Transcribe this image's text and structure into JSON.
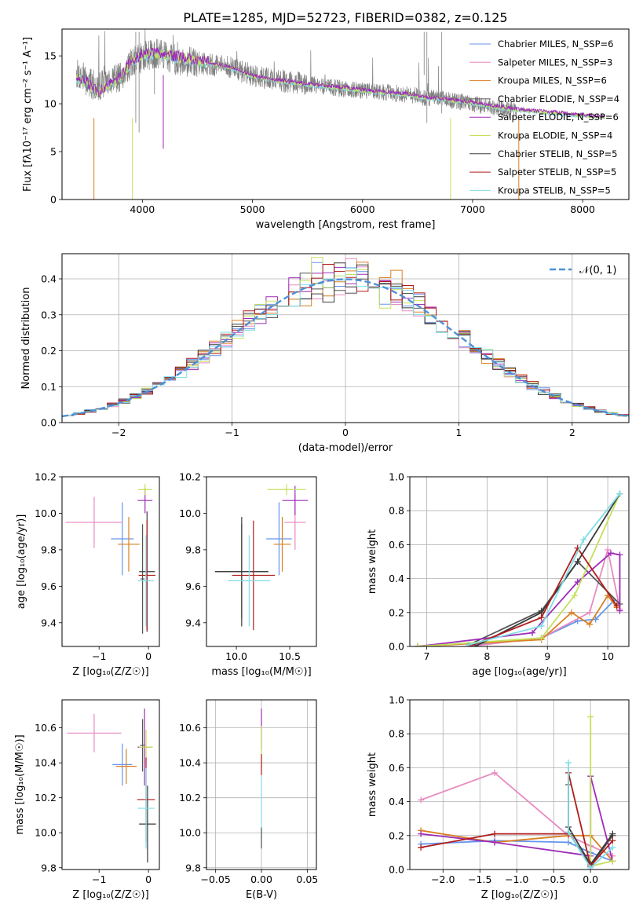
{
  "title": "PLATE=1285, MJD=52723, FIBERID=0382, z=0.125",
  "colors": {
    "c1": "#6495ed",
    "c2": "#e88ac0",
    "c3": "#d98024",
    "c4": "#555555",
    "c5": "#9d2cb8",
    "c6": "#c5e05c",
    "c7": "#3a3a3a",
    "c8": "#b01c1c",
    "c9": "#7fdde8",
    "grid": "#b0b0b0",
    "normal": "#4f8fd6"
  },
  "chart_data": [
    {
      "id": "spectrum",
      "type": "line",
      "xlabel": "wavelength [Angstrom, rest frame]",
      "ylabel": "Flux [fλ10⁻¹⁷ erg cm⁻² s⁻¹ A⁻¹]",
      "xlim": [
        3270,
        8420
      ],
      "ylim": [
        0,
        17.8
      ],
      "xticks": [
        4000,
        5000,
        6000,
        7000,
        8000
      ],
      "yticks": [
        0,
        5,
        10,
        15
      ],
      "grid": false,
      "legend": "top-right",
      "legend_entries": [
        "Chabrier MILES, N_SSP=6",
        "Salpeter MILES, N_SSP=3",
        "Kroupa MILES, N_SSP=6",
        "Chabrier ELODIE, N_SSP=4",
        "Salpeter ELODIE, N_SSP=6",
        "Kroupa ELODIE, N_SSP=4",
        "Chabrier STELIB, N_SSP=5",
        "Salpeter STELIB, N_SSP=5",
        "Kroupa STELIB, N_SSP=5"
      ],
      "data_curve": {
        "x": [
          3400,
          3500,
          3600,
          3700,
          3800,
          3900,
          4000,
          4100,
          4200,
          4300,
          4400,
          4500,
          4600,
          4800,
          5000,
          5200,
          5400,
          5600,
          5800,
          6000,
          6200,
          6400,
          6600,
          6800,
          7000,
          7200,
          7400
        ],
        "y": [
          13.2,
          12.2,
          11.8,
          12.4,
          12.8,
          14.2,
          14.9,
          15.2,
          15.1,
          14.6,
          14.4,
          14.3,
          14.1,
          13.8,
          13.0,
          12.5,
          12.2,
          11.9,
          11.6,
          11.4,
          11.2,
          11.0,
          10.6,
          10.4,
          10.0,
          9.6,
          9.2
        ]
      },
      "model_curve": {
        "x": [
          3400,
          3500,
          3600,
          3700,
          3800,
          3900,
          4000,
          4100,
          4200,
          4400,
          4600,
          4800,
          5000,
          5200,
          5400,
          5600,
          5800,
          6000,
          6200,
          6400,
          6600,
          6800,
          7000,
          7200,
          7400,
          7600,
          7800,
          8000,
          8200
        ],
        "y": [
          12.8,
          12.0,
          11.0,
          12.0,
          12.6,
          14.4,
          15.0,
          15.2,
          15.0,
          14.6,
          14.2,
          13.7,
          12.8,
          12.4,
          12.1,
          11.8,
          11.6,
          11.3,
          11.1,
          10.9,
          10.5,
          10.3,
          10.0,
          9.6,
          9.3,
          9.1,
          8.9,
          8.7,
          8.5
        ]
      }
    },
    {
      "id": "residuals",
      "type": "histogram",
      "xlabel": "(data-model)/error",
      "ylabel": "Normed distribution",
      "xlim": [
        -2.5,
        2.5
      ],
      "ylim": [
        0,
        0.47
      ],
      "xticks": [
        -2,
        -1,
        0,
        1,
        2
      ],
      "yticks": [
        0,
        0.1,
        0.2,
        0.3,
        0.4
      ],
      "grid": true,
      "legend": "top-right",
      "legend_entries": [
        "𝒩(0, 1)"
      ],
      "bin_width": 0.1
    },
    {
      "id": "age_vs_Z",
      "type": "errorbar",
      "xlabel": "Z [log₁₀(Z/Z☉)]",
      "ylabel": "age  [log₁₀(age/yr)]",
      "xlim": [
        -1.75,
        0.22
      ],
      "ylim": [
        9.27,
        10.2
      ],
      "xticks": [
        -1,
        0
      ],
      "yticks": [
        9.4,
        9.6,
        9.8,
        10.0,
        10.2
      ],
      "points": [
        {
          "c": "c1",
          "x": -0.53,
          "xe": 0.23,
          "y": 9.86,
          "ye": 0.2
        },
        {
          "c": "c2",
          "x": -1.1,
          "xe": 0.58,
          "y": 9.95,
          "ye": 0.14
        },
        {
          "c": "c3",
          "x": -0.4,
          "xe": 0.22,
          "y": 9.83,
          "ye": 0.15
        },
        {
          "c": "c4",
          "x": -0.12,
          "xe": 0.04,
          "y": 9.64,
          "ye": 0.3
        },
        {
          "c": "c5",
          "x": -0.07,
          "xe": 0.15,
          "y": 10.07,
          "ye": 0.07
        },
        {
          "c": "c6",
          "x": -0.07,
          "xe": 0.14,
          "y": 10.13,
          "ye": 0.03
        },
        {
          "c": "c7",
          "x": -0.03,
          "xe": 0.16,
          "y": 9.68,
          "ye": 0.33
        },
        {
          "c": "c8",
          "x": -0.03,
          "xe": 0.17,
          "y": 9.66,
          "ye": 0.3
        },
        {
          "c": "c9",
          "x": -0.05,
          "xe": 0.16,
          "y": 9.63,
          "ye": 0.25
        }
      ]
    },
    {
      "id": "age_vs_mass",
      "type": "errorbar",
      "xlabel": "mass [log₁₀(M/M☉)]",
      "ylabel": "",
      "xlim": [
        9.72,
        10.75
      ],
      "ylim": [
        9.27,
        10.2
      ],
      "xticks": [
        10.0,
        10.5
      ],
      "yticks": [
        9.4,
        9.6,
        9.8,
        10.0,
        10.2
      ],
      "points": [
        {
          "c": "c1",
          "x": 10.4,
          "xe": 0.12,
          "y": 9.86,
          "ye": 0.2
        },
        {
          "c": "c2",
          "x": 10.55,
          "xe": 0.1,
          "y": 9.95,
          "ye": 0.15
        },
        {
          "c": "c3",
          "x": 10.43,
          "xe": 0.08,
          "y": 9.83,
          "ye": 0.15
        },
        {
          "c": "c4",
          "x": 10.05,
          "xe": 0.25,
          "y": 9.68,
          "ye": 0.26
        },
        {
          "c": "c5",
          "x": 10.55,
          "xe": 0.12,
          "y": 10.07,
          "ye": 0.08
        },
        {
          "c": "c6",
          "x": 10.47,
          "xe": 0.18,
          "y": 10.13,
          "ye": 0.03
        },
        {
          "c": "c7",
          "x": 10.05,
          "xe": 0.25,
          "y": 9.68,
          "ye": 0.3
        },
        {
          "c": "c8",
          "x": 10.16,
          "xe": 0.2,
          "y": 9.66,
          "ye": 0.3
        },
        {
          "c": "c9",
          "x": 10.12,
          "xe": 0.2,
          "y": 9.63,
          "ye": 0.25
        }
      ]
    },
    {
      "id": "weight_vs_age",
      "type": "line",
      "xlabel": "age  [log₁₀(age/yr)]",
      "ylabel": "mass weight",
      "xlim": [
        6.72,
        10.35
      ],
      "ylim": [
        0,
        1.0
      ],
      "xticks": [
        7,
        8,
        9,
        10
      ],
      "yticks": [
        0,
        0.2,
        0.4,
        0.6,
        0.8,
        1.0
      ],
      "grid": true,
      "series": [
        {
          "c": "c1",
          "x": [
            7.8,
            8.9,
            9.5,
            9.8,
            10.1
          ],
          "y": [
            0.01,
            0.05,
            0.15,
            0.16,
            0.27
          ]
        },
        {
          "c": "c2",
          "x": [
            7.7,
            8.9,
            9.7,
            10.0,
            10.2
          ],
          "y": [
            0.0,
            0.05,
            0.2,
            0.57,
            0.22
          ]
        },
        {
          "c": "c3",
          "x": [
            6.85,
            8.9,
            9.4,
            9.7,
            10.0,
            10.15
          ],
          "y": [
            0.0,
            0.04,
            0.2,
            0.13,
            0.3,
            0.23
          ]
        },
        {
          "c": "c4",
          "x": [
            7.7,
            8.9,
            9.5,
            10.2
          ],
          "y": [
            0.01,
            0.21,
            0.5,
            0.25
          ]
        },
        {
          "c": "c5",
          "x": [
            6.85,
            8.75,
            9.5,
            10.05,
            10.2,
            10.2
          ],
          "y": [
            0.0,
            0.08,
            0.38,
            0.55,
            0.54,
            0.21
          ]
        },
        {
          "c": "c6",
          "x": [
            6.85,
            8.9,
            9.45,
            10.2
          ],
          "y": [
            0.0,
            0.05,
            0.3,
            0.9
          ]
        },
        {
          "c": "c7",
          "x": [
            7.8,
            8.9,
            9.5,
            10.2
          ],
          "y": [
            0.0,
            0.2,
            0.5,
            0.9
          ]
        },
        {
          "c": "c8",
          "x": [
            7.7,
            8.9,
            9.5,
            10.15
          ],
          "y": [
            0.0,
            0.17,
            0.58,
            0.24
          ]
        },
        {
          "c": "c9",
          "x": [
            7.7,
            8.9,
            9.6,
            10.2
          ],
          "y": [
            0.01,
            0.12,
            0.63,
            0.9
          ]
        }
      ]
    },
    {
      "id": "mass_vs_Z",
      "type": "errorbar",
      "xlabel": "Z [log₁₀(Z/Z☉)]",
      "ylabel": "mass [log₁₀(M/M☉)]",
      "xlim": [
        -1.75,
        0.22
      ],
      "ylim": [
        9.79,
        10.76
      ],
      "xticks": [
        -1,
        0
      ],
      "yticks": [
        9.8,
        10.0,
        10.2,
        10.4,
        10.6
      ],
      "points": [
        {
          "c": "c1",
          "x": -0.53,
          "xe": 0.2,
          "y": 10.39,
          "ye": 0.12
        },
        {
          "c": "c2",
          "x": -1.1,
          "xe": 0.55,
          "y": 10.57,
          "ye": 0.11
        },
        {
          "c": "c3",
          "x": -0.45,
          "xe": 0.21,
          "y": 10.38,
          "ye": 0.1
        },
        {
          "c": "c4",
          "x": -0.12,
          "xe": 0.05,
          "y": 10.5,
          "ye": 0.15
        },
        {
          "c": "c5",
          "x": -0.08,
          "xe": 0.14,
          "y": 10.49,
          "ye": 0.22
        },
        {
          "c": "c6",
          "x": -0.05,
          "xe": 0.14,
          "y": 10.49,
          "ye": 0.1
        },
        {
          "c": "c7",
          "x": -0.02,
          "xe": 0.17,
          "y": 10.05,
          "ye": 0.22
        },
        {
          "c": "c8",
          "x": -0.05,
          "xe": 0.18,
          "y": 10.19,
          "ye": 0.24
        },
        {
          "c": "c9",
          "x": -0.05,
          "xe": 0.17,
          "y": 10.14,
          "ye": 0.23
        }
      ]
    },
    {
      "id": "mass_vs_EBV",
      "type": "errorbar",
      "xlabel": "E(B-V)",
      "ylabel": "",
      "xlim": [
        -0.06,
        0.06
      ],
      "ylim": [
        9.79,
        10.76
      ],
      "xticks": [
        -0.05,
        0.0,
        0.05
      ],
      "yticks": [
        9.8,
        10.0,
        10.2,
        10.4,
        10.6
      ],
      "grid": true,
      "points": [
        {
          "c": "c5",
          "x": 0,
          "xe": 0,
          "y": 10.59,
          "ye": 0.12
        },
        {
          "c": "c6",
          "x": 0,
          "xe": 0,
          "y": 10.49,
          "ye": 0.12
        },
        {
          "c": "c8",
          "x": 0,
          "xe": 0,
          "y": 10.39,
          "ye": 0.06
        },
        {
          "c": "c9",
          "x": 0,
          "xe": 0,
          "y": 10.12,
          "ye": 0.2
        },
        {
          "c": "c4",
          "x": 0,
          "xe": 0,
          "y": 9.97,
          "ye": 0.06
        }
      ]
    },
    {
      "id": "weight_vs_Z",
      "type": "line",
      "xlabel": "Z [log₁₀(Z/Z☉)]",
      "ylabel": "mass weight",
      "xlim": [
        -2.45,
        0.52
      ],
      "ylim": [
        0,
        1.0
      ],
      "xticks": [
        -2.0,
        -1.5,
        -1.0,
        -0.5,
        0.0
      ],
      "yticks": [
        0,
        0.2,
        0.4,
        0.6,
        0.8,
        1.0
      ],
      "grid": true,
      "series": [
        {
          "c": "c1",
          "x": [
            -2.3,
            -1.3,
            -0.3,
            0.0,
            0.3
          ],
          "y": [
            0.15,
            0.17,
            0.16,
            0.1,
            0.05
          ]
        },
        {
          "c": "c2",
          "x": [
            -2.3,
            -1.3,
            -0.3,
            0.0,
            0.3
          ],
          "y": [
            0.41,
            0.57,
            0.2,
            0.14,
            0.08
          ]
        },
        {
          "c": "c3",
          "x": [
            -2.3,
            -1.3,
            -0.3,
            0.0,
            0.3
          ],
          "y": [
            0.23,
            0.16,
            0.2,
            0.2,
            0.05
          ]
        },
        {
          "c": "c4",
          "x": [
            -0.3,
            -0.3,
            0.0,
            0.3
          ],
          "y": [
            0.5,
            0.22,
            0.02,
            0.2
          ]
        },
        {
          "c": "c5",
          "x": [
            -2.3,
            -1.3,
            0.0,
            0.0,
            0.3
          ],
          "y": [
            0.21,
            0.16,
            0.08,
            0.55,
            0.05
          ]
        },
        {
          "c": "c6",
          "x": [
            0.0,
            0.0,
            0.3
          ],
          "y": [
            0.9,
            0.02,
            0.05
          ]
        },
        {
          "c": "c7",
          "x": [
            -0.3,
            0.0,
            0.3
          ],
          "y": [
            0.25,
            0.03,
            0.21
          ]
        },
        {
          "c": "c8",
          "x": [
            -2.3,
            -1.3,
            -0.3,
            -0.3,
            0.0,
            0.3
          ],
          "y": [
            0.13,
            0.21,
            0.21,
            0.57,
            0.02,
            0.17
          ]
        },
        {
          "c": "c9",
          "x": [
            -0.3,
            -0.3,
            0.0,
            0.3
          ],
          "y": [
            0.63,
            0.22,
            0.01,
            0.13
          ]
        }
      ]
    }
  ]
}
